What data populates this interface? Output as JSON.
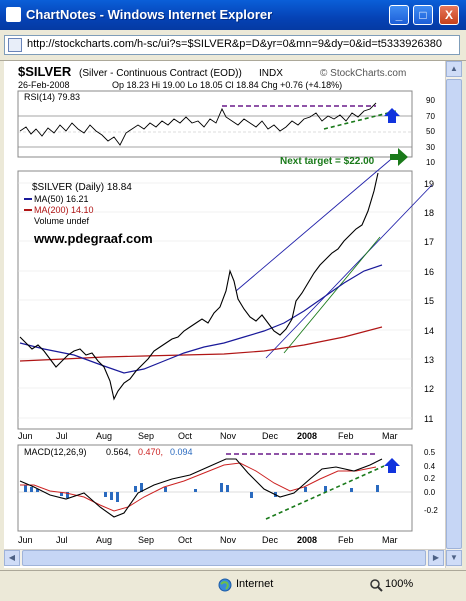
{
  "window": {
    "title": "ChartNotes - Windows Internet Explorer",
    "minimize_glyph": "_",
    "maximize_glyph": "□",
    "close_glyph": "X"
  },
  "address_bar": {
    "url": "http://stockcharts.com/h-sc/ui?s=$SILVER&p=D&yr=0&mn=9&dy=0&id=t5333926380"
  },
  "status_bar": {
    "zone_label": "Internet",
    "zoom_label": "100%"
  },
  "colors": {
    "price": "#000000",
    "ma50": "#1a1a9a",
    "ma200": "#b01515",
    "channel": "#2222aa",
    "annotation_green": "#1a7a1a",
    "annotation_purple": "#6a1a8a",
    "arrow_blue": "#1133dd",
    "macd_signal": "#cc2222",
    "histogram": "#2a6abf"
  },
  "chart_header": {
    "symbol": "$SILVER",
    "description": "(Silver - Continuous Contract (EOD))",
    "exchange": "INDX",
    "watermark": "© StockCharts.com",
    "date": "26-Feb-2008",
    "ohlc_text": "Op 18.23  Hi 19.00  Lo 18.05  Cl 18.84  Chg +0.76 (+4.18%)"
  },
  "rsi_panel": {
    "legend": "RSI(14) 79.83",
    "ticks": [
      "90",
      "70",
      "50",
      "30",
      "10"
    ]
  },
  "price_panel": {
    "legend_title": "$SILVER (Daily) 18.84",
    "legend_ma50": "MA(50) 16.21",
    "legend_ma200": "MA(200) 14.10",
    "legend_volume": "Volume undef",
    "watermark": "www.pdegraaf.com",
    "annotation": "Next target = $22.00",
    "y_ticks": [
      "19",
      "18",
      "17",
      "16",
      "15",
      "14",
      "13",
      "12",
      "11"
    ],
    "x_labels": [
      "Jun",
      "Jul",
      "Aug",
      "Sep",
      "Oct",
      "Nov",
      "Dec",
      "2008",
      "Feb",
      "Mar"
    ]
  },
  "macd_panel": {
    "legend_name": "MACD(12,26,9)",
    "value_macd": "0.564,",
    "value_signal": "0.470,",
    "value_hist": "0.094",
    "y_ticks": [
      "0.5",
      "0.4",
      "0.2",
      "0.0",
      "-0.2"
    ],
    "x_labels": [
      "Jun",
      "Jul",
      "Aug",
      "Sep",
      "Oct",
      "Nov",
      "Dec",
      "2008",
      "Feb",
      "Mar"
    ]
  },
  "chart_data": {
    "type": "line",
    "x_labels": [
      "Jun",
      "Jul",
      "Aug",
      "Sep",
      "Oct",
      "Nov",
      "Dec",
      "2008",
      "Feb",
      "Mar"
    ],
    "price_close_approx": [
      13.7,
      13.0,
      12.7,
      13.0,
      12.2,
      11.3,
      12.6,
      13.3,
      14.0,
      14.6,
      15.4,
      14.7,
      14.2,
      14.3,
      14.8,
      15.3,
      16.2,
      17.0,
      17.8,
      18.84
    ],
    "ma50_approx": [
      13.5,
      13.2,
      13.0,
      12.6,
      12.5,
      12.8,
      13.3,
      13.7,
      14.0,
      14.3,
      14.5,
      14.7,
      14.9,
      15.2,
      15.6,
      16.0,
      16.21
    ],
    "ma200_approx": [
      13.0,
      13.05,
      13.1,
      13.1,
      13.1,
      13.15,
      13.2,
      13.3,
      13.4,
      13.5,
      13.6,
      13.8,
      14.0,
      14.1
    ],
    "rsi_last": 79.83,
    "macd": 0.564,
    "signal": 0.47,
    "histogram": 0.094,
    "price_ylim": [
      11,
      19
    ],
    "rsi_ylim": [
      10,
      90
    ],
    "macd_ylim": [
      -0.2,
      0.5
    ]
  }
}
